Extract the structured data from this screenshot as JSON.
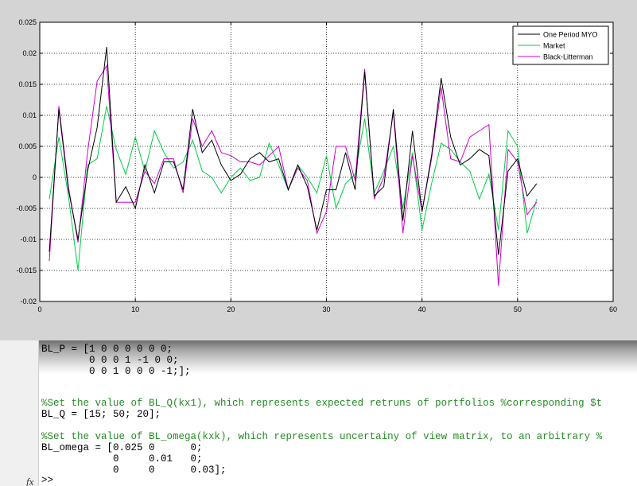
{
  "chart_data": {
    "type": "line",
    "title": "",
    "xlabel": "",
    "ylabel": "",
    "xlim": [
      0,
      60
    ],
    "ylim": [
      -0.02,
      0.025
    ],
    "x_ticks": [
      "0",
      "10",
      "20",
      "30",
      "40",
      "50",
      "60"
    ],
    "y_ticks": [
      "-0.02",
      "-0.015",
      "-0.01",
      "-0.005",
      "0",
      "0.005",
      "0.01",
      "0.015",
      "0.02",
      "0.025"
    ],
    "grid": true,
    "legend_position": "top-right",
    "x": [
      1,
      2,
      3,
      4,
      5,
      6,
      7,
      8,
      9,
      10,
      11,
      12,
      13,
      14,
      15,
      16,
      17,
      18,
      19,
      20,
      21,
      22,
      23,
      24,
      25,
      26,
      27,
      28,
      29,
      30,
      31,
      32,
      33,
      34,
      35,
      36,
      37,
      38,
      39,
      40,
      41,
      42,
      43,
      44,
      45,
      46,
      47,
      48,
      49,
      50,
      51,
      52
    ],
    "series": [
      {
        "name": "One Period MYO",
        "color": "#000000",
        "values": [
          -0.012,
          0.011,
          -0.002,
          -0.01,
          0.001,
          0.008,
          0.021,
          -0.004,
          -0.0015,
          -0.005,
          0.002,
          -0.0025,
          0.0025,
          0.0025,
          -0.002,
          0.011,
          0.004,
          0.006,
          0.002,
          -0.0005,
          0.0005,
          0.003,
          0.004,
          0.0025,
          0.003,
          -0.002,
          0.002,
          -0.0015,
          -0.0085,
          -0.002,
          -0.002,
          0.004,
          -0.002,
          0.017,
          -0.003,
          -0.0015,
          0.011,
          -0.007,
          0.0075,
          -0.0055,
          0.0035,
          0.016,
          0.0065,
          0.002,
          0.003,
          0.0045,
          0.0035,
          -0.0125,
          0.001,
          0.003,
          -0.003,
          -0.001
        ]
      },
      {
        "name": "Market",
        "color": "#00cc44",
        "values": [
          -0.0035,
          0.0065,
          -0.003,
          -0.015,
          0.002,
          0.003,
          0.0115,
          0.0045,
          0.0005,
          0.0065,
          0.001,
          0.0075,
          0.004,
          0.0015,
          0.0025,
          0.006,
          0.001,
          0.0,
          -0.0025,
          0.0,
          0.0015,
          -0.0005,
          0.0,
          0.0055,
          0.002,
          -0.002,
          0.002,
          0.0,
          -0.0025,
          0.0035,
          -0.005,
          -0.001,
          0.0005,
          0.0095,
          -0.0025,
          0.001,
          0.005,
          -0.005,
          0.004,
          -0.0085,
          -0.001,
          0.0055,
          0.0045,
          0.0025,
          0.001,
          -0.0035,
          0.0005,
          -0.0085,
          0.0075,
          0.005,
          -0.009,
          -0.0035
        ]
      },
      {
        "name": "Black-Litterman",
        "color": "#cc00cc",
        "values": [
          -0.0135,
          0.0115,
          -0.0015,
          -0.0105,
          0.004,
          0.0155,
          0.018,
          -0.004,
          -0.004,
          -0.004,
          0.001,
          -0.001,
          0.003,
          0.003,
          -0.0025,
          0.0095,
          0.005,
          0.0075,
          0.004,
          0.0035,
          0.0025,
          0.0025,
          0.002,
          0.0035,
          0.005,
          -0.002,
          0.0015,
          -0.0005,
          -0.009,
          -0.0055,
          0.005,
          0.005,
          -0.0005,
          0.0175,
          -0.0035,
          0.0,
          0.0105,
          -0.009,
          0.0035,
          -0.0055,
          0.003,
          0.0145,
          0.003,
          0.0025,
          0.0065,
          0.0075,
          0.0085,
          -0.0175,
          0.0045,
          0.0025,
          -0.006,
          -0.004
        ]
      }
    ]
  },
  "editor": {
    "lines": [
      "BL_P = [1 0 0 0 0 0 0;",
      "        0 0 0 1 -1 0 0;",
      "        0 0 1 0 0 0 -1;];",
      "",
      "",
      "%Set the value of BL_Q(kx1), which represents expected retruns of portfolios %corresponding $t",
      "BL_Q = [15; 50; 20];",
      "",
      "%Set the value of BL_omega(kxk), which represents uncertainy of view matrix, to an arbitrary %",
      "BL_omega = [0.025 0      0;",
      "            0     0.01   0;",
      "            0     0      0.03];"
    ],
    "prompt_fx": "fx",
    "prompt": ">>"
  }
}
